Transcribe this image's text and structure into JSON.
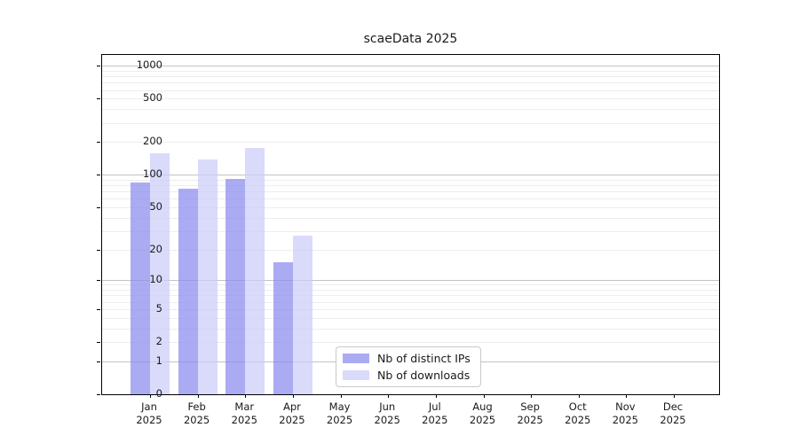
{
  "title": "scaeData 2025",
  "chart_data": {
    "type": "bar",
    "title": "scaeData 2025",
    "categories": [
      "Jan",
      "Feb",
      "Mar",
      "Apr",
      "May",
      "Jun",
      "Jul",
      "Aug",
      "Sep",
      "Oct",
      "Nov",
      "Dec"
    ],
    "category_year": "2025",
    "series": [
      {
        "name": "Nb of distinct IPs",
        "color": "#8a8af0",
        "alpha": 0.72,
        "values": [
          85,
          74,
          92,
          15,
          0,
          0,
          0,
          0,
          0,
          0,
          0,
          0
        ]
      },
      {
        "name": "Nb of downloads",
        "color": "#ccccfa",
        "alpha": 0.72,
        "values": [
          158,
          138,
          177,
          27,
          0,
          0,
          0,
          0,
          0,
          0,
          0,
          0
        ]
      }
    ],
    "xlabel": "",
    "ylabel": "",
    "y_scale": "log10(1+v)",
    "y_ticks": [
      1000,
      500,
      200,
      100,
      50,
      20,
      10,
      5,
      2,
      1,
      0
    ],
    "ylim": [
      0,
      1200
    ],
    "grid": true,
    "grid_major_color": "#c3c3c3",
    "grid_minor_color": "#ededed",
    "axis_color": "#000000",
    "text_color": "#1a1a1a",
    "legend_position": "lower center",
    "legend_entries": [
      "Nb of distinct IPs",
      "Nb of downloads"
    ]
  }
}
